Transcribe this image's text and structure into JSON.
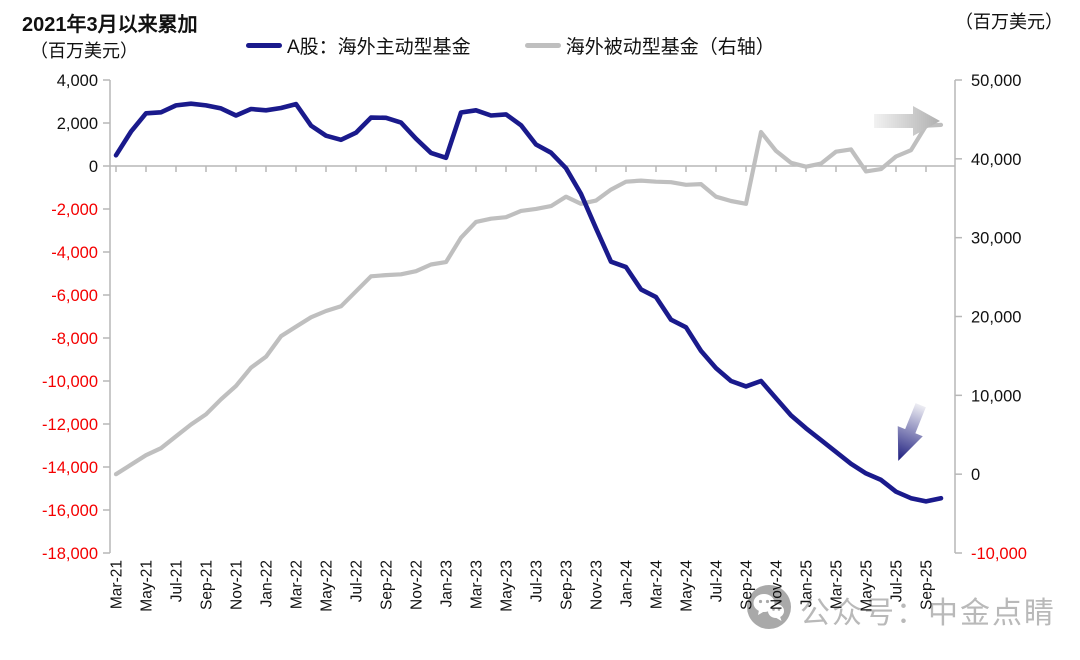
{
  "header": {
    "title": "2021年3月以来累加",
    "title_unit": "（百万美元）",
    "right_unit": "（百万美元）"
  },
  "legend": [
    {
      "label": "A股：海外主动型基金",
      "color": "#1a1a8c"
    },
    {
      "label": "海外被动型基金（右轴）",
      "color": "#bfbfbf"
    }
  ],
  "watermark": {
    "icon": "wechat-icon",
    "text": "公众号：中金点睛"
  },
  "chart_data": {
    "type": "line",
    "title": "2021年3月以来累加（百万美元）",
    "grid": false,
    "legend_position": "top",
    "x_tick_labels": [
      "Mar-21",
      "May-21",
      "Jul-21",
      "Sep-21",
      "Nov-21",
      "Jan-22",
      "Mar-22",
      "May-22",
      "Jul-22",
      "Sep-22",
      "Nov-22",
      "Jan-23",
      "Mar-23",
      "May-23",
      "Jul-23",
      "Sep-23",
      "Nov-23",
      "Jan-24",
      "Mar-24",
      "May-24",
      "Jul-24",
      "Sep-24",
      "Nov-24",
      "Jan-25",
      "Mar-25",
      "May-25",
      "Jul-25",
      "Sep-25"
    ],
    "months": [
      "Mar-21",
      "Apr-21",
      "May-21",
      "Jun-21",
      "Jul-21",
      "Aug-21",
      "Sep-21",
      "Oct-21",
      "Nov-21",
      "Dec-21",
      "Jan-22",
      "Feb-22",
      "Mar-22",
      "Apr-22",
      "May-22",
      "Jun-22",
      "Jul-22",
      "Aug-22",
      "Sep-22",
      "Oct-22",
      "Nov-22",
      "Dec-22",
      "Jan-23",
      "Feb-23",
      "Mar-23",
      "Apr-23",
      "May-23",
      "Jun-23",
      "Jul-23",
      "Aug-23",
      "Sep-23",
      "Oct-23",
      "Nov-23",
      "Dec-23",
      "Jan-24",
      "Feb-24",
      "Mar-24",
      "Apr-24",
      "May-24",
      "Jun-24",
      "Jul-24",
      "Aug-24",
      "Sep-24",
      "Oct-24",
      "Nov-24",
      "Dec-24",
      "Jan-25",
      "Feb-25",
      "Mar-25",
      "Apr-25",
      "May-25",
      "Jun-25",
      "Jul-25",
      "Aug-25",
      "Sep-25",
      "Oct-25"
    ],
    "series": [
      {
        "name": "A股：海外主动型基金",
        "axis": "left",
        "color": "#1a1a8c",
        "values": [
          500,
          1600,
          2450,
          2500,
          2820,
          2900,
          2820,
          2680,
          2350,
          2650,
          2590,
          2700,
          2880,
          1880,
          1410,
          1220,
          1550,
          2250,
          2240,
          2020,
          1270,
          610,
          380,
          2490,
          2590,
          2350,
          2400,
          1900,
          1000,
          620,
          -100,
          -1300,
          -2900,
          -4450,
          -4700,
          -5740,
          -6100,
          -7150,
          -7500,
          -8600,
          -9400,
          -10000,
          -10250,
          -10000,
          -10800,
          -11600,
          -12200,
          -12750,
          -13300,
          -13850,
          -14300,
          -14600,
          -15150,
          -15450,
          -15600,
          -15450
        ]
      },
      {
        "name": "海外被动型基金（右轴）",
        "axis": "right",
        "color": "#bfbfbf",
        "values": [
          0,
          1200,
          2400,
          3300,
          4800,
          6300,
          7600,
          9500,
          11200,
          13500,
          14900,
          17500,
          18700,
          19900,
          20700,
          21300,
          23200,
          25100,
          25250,
          25350,
          25750,
          26600,
          26900,
          30000,
          32000,
          32400,
          32600,
          33400,
          33650,
          34000,
          35200,
          34300,
          34700,
          36100,
          37100,
          37240,
          37100,
          37040,
          36700,
          36800,
          35200,
          34650,
          34300,
          43400,
          41000,
          39500,
          39000,
          39400,
          40900,
          41200,
          38400,
          38700,
          40300,
          41100,
          44200,
          44300
        ]
      }
    ],
    "left_axis": {
      "min": -18000,
      "max": 4000,
      "step": 2000,
      "tick_labels": [
        "4,000",
        "2,000",
        "0",
        "-2,000",
        "-4,000",
        "-6,000",
        "-8,000",
        "-10,000",
        "-12,000",
        "-14,000",
        "-16,000",
        "-18,000"
      ]
    },
    "right_axis": {
      "min": -10000,
      "max": 50000,
      "step": 10000,
      "tick_labels": [
        "50,000",
        "40,000",
        "30,000",
        "20,000",
        "10,000",
        "0",
        "-10,000"
      ]
    },
    "negative_label_color": "#f40000",
    "positive_label_color": "#111111",
    "annotations": [
      {
        "name": "passive-trend-arrow",
        "shape": "arrow-right",
        "color_from": "#f2f2f2",
        "color_to": "#b0b0b0"
      },
      {
        "name": "active-trend-arrow",
        "shape": "arrow-down",
        "color_from": "#ededf3",
        "color_to": "#1c1c7e"
      }
    ]
  }
}
